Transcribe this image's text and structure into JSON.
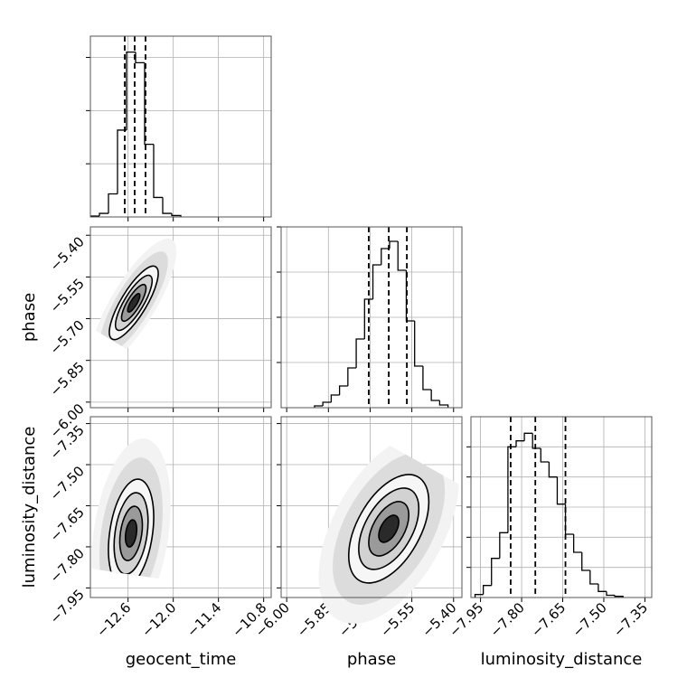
{
  "chart_data": {
    "type": "corner",
    "parameters": [
      {
        "label": "geocent_time",
        "lim": [
          -13.1,
          -10.7
        ],
        "ticks": [
          {
            "value": -12.6,
            "label": "−12.6"
          },
          {
            "value": -12.0,
            "label": "−12.0"
          },
          {
            "value": -11.4,
            "label": "−11.4"
          },
          {
            "value": -10.8,
            "label": "−10.8"
          }
        ]
      },
      {
        "label": "phase",
        "lim": [
          -6.02,
          -5.37
        ],
        "ticks": [
          {
            "value": -6.0,
            "label": "−6.00"
          },
          {
            "value": -5.85,
            "label": "−5.85"
          },
          {
            "value": -5.7,
            "label": "−5.70"
          },
          {
            "value": -5.55,
            "label": "−5.55"
          },
          {
            "value": -5.4,
            "label": "−5.40"
          }
        ]
      },
      {
        "label": "luminosity_distance",
        "lim": [
          -7.985,
          -7.325
        ],
        "ticks": [
          {
            "value": -7.95,
            "label": "−7.95"
          },
          {
            "value": -7.8,
            "label": "−7.80"
          },
          {
            "value": -7.65,
            "label": "−7.65"
          },
          {
            "value": -7.5,
            "label": "−7.50"
          },
          {
            "value": -7.35,
            "label": "−7.35"
          }
        ]
      }
    ],
    "histograms": [
      {
        "bins": [
          -13.1,
          -12.98,
          -12.86,
          -12.74,
          -12.62,
          -12.5,
          -12.38,
          -12.26,
          -12.14,
          -12.02,
          -11.9
        ],
        "counts": [
          5,
          20,
          130,
          490,
          930,
          870,
          410,
          110,
          20,
          8
        ],
        "ylim": [
          0,
          1020
        ],
        "yticks": [
          300,
          600,
          900
        ],
        "quantiles": [
          -12.644,
          -12.512,
          -12.368
        ]
      },
      {
        "bins": [
          -5.9,
          -5.87,
          -5.84,
          -5.81,
          -5.78,
          -5.75,
          -5.72,
          -5.69,
          -5.66,
          -5.63,
          -5.6,
          -5.57,
          -5.54,
          -5.51,
          -5.48,
          -5.45,
          -5.42
        ],
        "counts": [
          10,
          30,
          70,
          120,
          220,
          380,
          600,
          790,
          880,
          920,
          760,
          480,
          230,
          100,
          40,
          15
        ],
        "ylim": [
          0,
          1000
        ],
        "yticks": [
          250,
          500,
          750,
          1000
        ],
        "quantiles": [
          -5.705,
          -5.633,
          -5.568
        ]
      },
      {
        "bins": [
          -7.97,
          -7.94,
          -7.91,
          -7.88,
          -7.85,
          -7.82,
          -7.79,
          -7.76,
          -7.73,
          -7.7,
          -7.67,
          -7.64,
          -7.61,
          -7.58,
          -7.55,
          -7.52,
          -7.49,
          -7.46,
          -7.43
        ],
        "counts": [
          20,
          80,
          260,
          430,
          1000,
          1040,
          1090,
          990,
          900,
          800,
          620,
          420,
          300,
          180,
          90,
          40,
          15,
          8
        ],
        "ylim": [
          0,
          1200
        ],
        "yticks": [
          200,
          400,
          600,
          800,
          1000
        ],
        "quantiles": [
          -7.84,
          -7.75,
          -7.64
        ]
      }
    ],
    "pairs": [
      {
        "x": 0,
        "y": 1,
        "mean": [
          -12.524,
          -5.643
        ],
        "sd": [
          0.162,
          0.066
        ],
        "corr": 0.8
      },
      {
        "x": 0,
        "y": 2,
        "mean": [
          -12.56,
          -7.751
        ],
        "sd": [
          0.15,
          0.099
        ],
        "corr": 0.3
      },
      {
        "x": 1,
        "y": 2,
        "mean": [
          -5.633,
          -7.734
        ],
        "sd": [
          0.072,
          0.099
        ],
        "corr": 0.5
      }
    ],
    "fill_levels": [
      3.5,
      2.8,
      2,
      1.5,
      1,
      0.5
    ],
    "fills": [
      "#f3f3f3",
      "#dcdcdc",
      "#f6f6f6",
      "#d2d2d2",
      "#9a9a9a",
      "#2a2a2a"
    ],
    "contour_levels": [
      0.5,
      1,
      1.5,
      2
    ],
    "line_color": "#000000",
    "grid": true
  }
}
